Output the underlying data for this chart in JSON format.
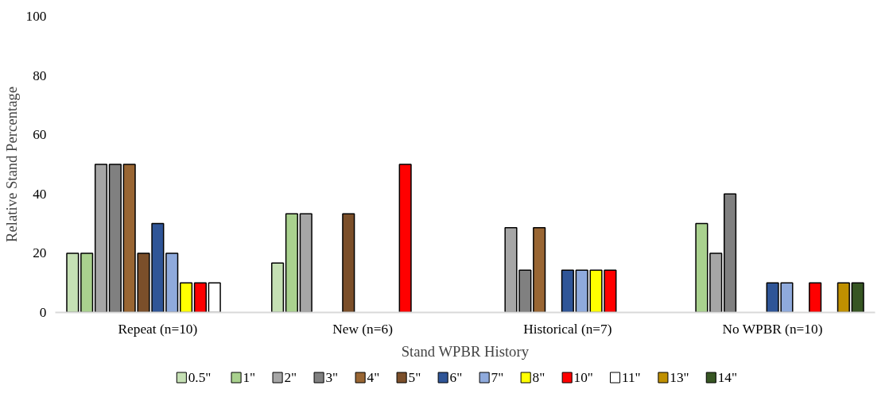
{
  "chart_data": {
    "type": "bar",
    "xlabel": "Stand WPBR History",
    "ylabel": "Relative Stand Percentage",
    "categories": [
      "Repeat (n=10)",
      "New (n=6)",
      "Historical (n=7)",
      "No WPBR (n=10)"
    ],
    "ylim": [
      0,
      100
    ],
    "yticks": [
      0,
      20,
      40,
      60,
      80,
      100
    ],
    "grid": false,
    "legend": "bottom",
    "series": [
      {
        "name": "0.5\"",
        "color": "#c5e0b4",
        "values": [
          20,
          16.7,
          null,
          null
        ]
      },
      {
        "name": "1\"",
        "color": "#a9d18e",
        "values": [
          20,
          33.3,
          null,
          30
        ]
      },
      {
        "name": "2\"",
        "color": "#a6a6a6",
        "values": [
          50,
          33.3,
          28.6,
          20
        ]
      },
      {
        "name": "3\"",
        "color": "#808080",
        "values": [
          50,
          null,
          14.3,
          40
        ]
      },
      {
        "name": "4\"",
        "color": "#996633",
        "values": [
          50,
          null,
          28.6,
          null
        ]
      },
      {
        "name": "5\"",
        "color": "#7b4f2a",
        "values": [
          20,
          33.3,
          null,
          null
        ]
      },
      {
        "name": "6\"",
        "color": "#2f5597",
        "values": [
          30,
          null,
          14.3,
          10
        ]
      },
      {
        "name": "7\"",
        "color": "#8faadc",
        "values": [
          20,
          null,
          14.3,
          10
        ]
      },
      {
        "name": "8\"",
        "color": "#ffff00",
        "values": [
          10,
          null,
          14.3,
          null
        ]
      },
      {
        "name": "10\"",
        "color": "#ff0000",
        "values": [
          10,
          50,
          14.3,
          10
        ]
      },
      {
        "name": "11\"",
        "color": "#ffffff",
        "values": [
          10,
          null,
          null,
          null
        ]
      },
      {
        "name": "13\"",
        "color": "#bf9000",
        "values": [
          null,
          null,
          null,
          10
        ]
      },
      {
        "name": "14\"",
        "color": "#375623",
        "values": [
          null,
          null,
          null,
          10
        ]
      }
    ]
  }
}
